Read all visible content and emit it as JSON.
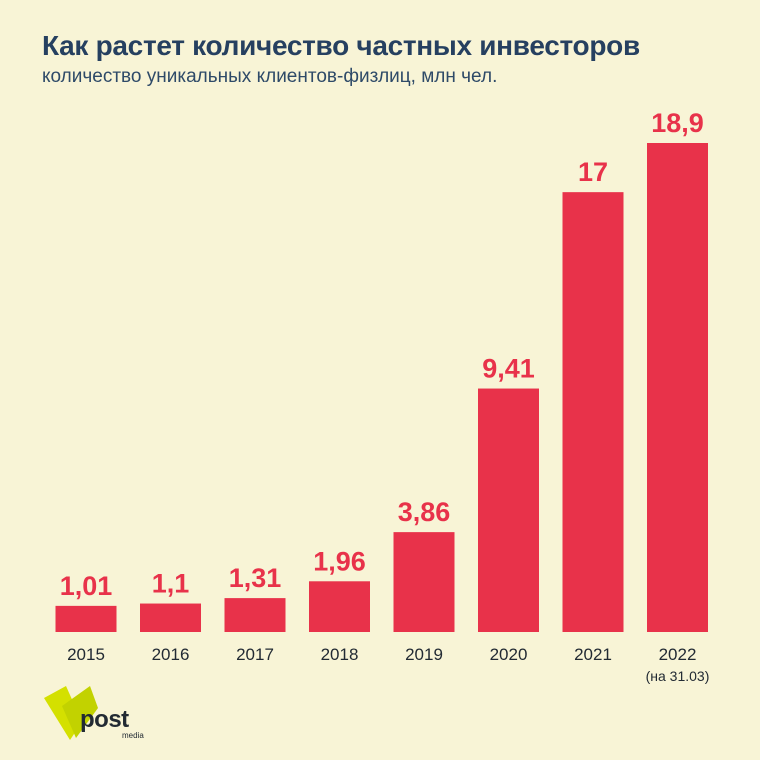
{
  "title": "Как растет количество частных инвесторов",
  "subtitle": "количество уникальных клиентов-физлиц, млн чел.",
  "logo": {
    "text": "post",
    "sub": "media",
    "color": "#d4e000"
  },
  "colors": {
    "background": "#f8f4d6",
    "bar": "#e8324a",
    "title": "#264060"
  },
  "chart_data": {
    "type": "bar",
    "categories": [
      "2015",
      "2016",
      "2017",
      "2018",
      "2019",
      "2020",
      "2021",
      "2022"
    ],
    "category_notes": [
      "",
      "",
      "",
      "",
      "",
      "",
      "",
      "(на 31.03)"
    ],
    "values": [
      1.01,
      1.1,
      1.31,
      1.96,
      3.86,
      9.41,
      17,
      18.9
    ],
    "value_labels": [
      "1,01",
      "1,1",
      "1,31",
      "1,96",
      "3,86",
      "9,41",
      "17",
      "18,9"
    ],
    "title": "Как растет количество частных инвесторов",
    "subtitle": "количество уникальных клиентов-физлиц, млн чел.",
    "xlabel": "",
    "ylabel": "",
    "ylim": [
      0,
      18.9
    ],
    "grid": false,
    "legend": "none"
  }
}
